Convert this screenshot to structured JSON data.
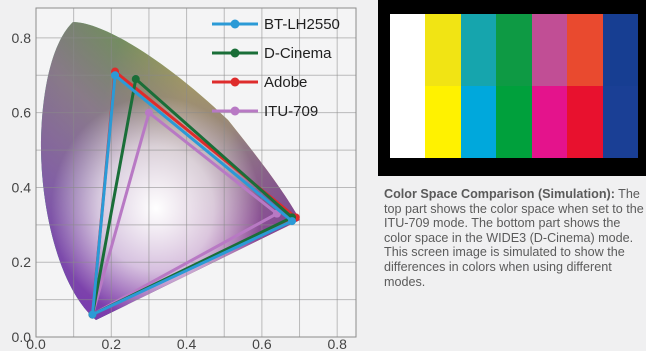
{
  "chart_data": {
    "type": "line",
    "title": "",
    "xlabel": "",
    "ylabel": "",
    "xlim": [
      0,
      0.85
    ],
    "ylim": [
      0,
      0.88
    ],
    "x_ticks": [
      "0.0",
      "0.2",
      "0.4",
      "0.6",
      "0.8"
    ],
    "y_ticks": [
      "0.2",
      "0.4",
      "0.6",
      "0.8"
    ],
    "origin_label": "0.0",
    "grid": true,
    "legend_position": "top-right",
    "series": [
      {
        "name": "BT-LH2550",
        "color": "#2b9ad6",
        "points": [
          [
            0.68,
            0.31
          ],
          [
            0.21,
            0.7
          ],
          [
            0.15,
            0.06
          ]
        ]
      },
      {
        "name": "D-Cinema",
        "color": "#1a6e38",
        "points": [
          [
            0.68,
            0.32
          ],
          [
            0.265,
            0.69
          ],
          [
            0.15,
            0.06
          ]
        ]
      },
      {
        "name": "Adobe",
        "color": "#de2c2c",
        "points": [
          [
            0.69,
            0.32
          ],
          [
            0.21,
            0.71
          ],
          [
            0.15,
            0.06
          ]
        ]
      },
      {
        "name": "ITU-709",
        "color": "#b879c4",
        "points": [
          [
            0.64,
            0.33
          ],
          [
            0.3,
            0.6
          ],
          [
            0.15,
            0.06
          ]
        ]
      }
    ]
  },
  "color_bars": {
    "top": [
      "#ffffff",
      "#f1e414",
      "#16a5ad",
      "#0e9a44",
      "#c14e95",
      "#e94a2f",
      "#173e92"
    ],
    "bottom": [
      "#ffffff",
      "#fff200",
      "#00a8dc",
      "#00a03c",
      "#e4138c",
      "#e8112e",
      "#1a3f95"
    ]
  },
  "caption": {
    "heading": "Color Space Comparison (Simulation):",
    "body": " The top part shows the color space when set to the ITU-709 mode. The bottom part shows the color space in the WIDE3 (D-Cinema) mode. This screen image is simulated to show the differences in colors when using different modes."
  }
}
